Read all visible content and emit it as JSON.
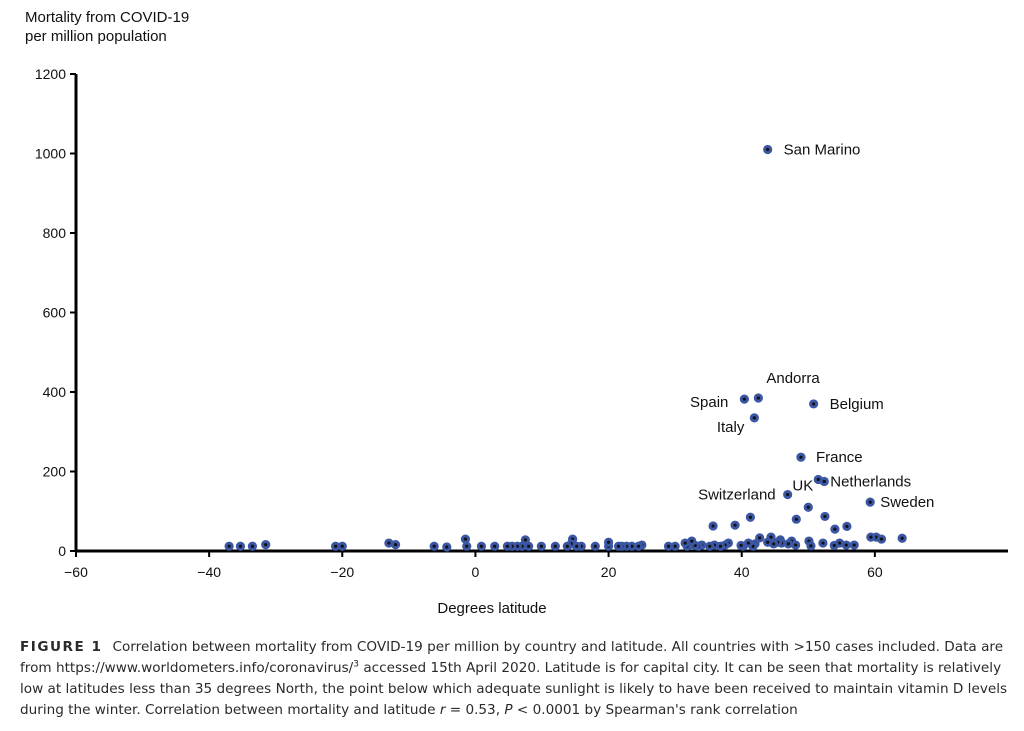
{
  "chart_data": {
    "type": "scatter",
    "title": "",
    "ylabel_line1": "Mortality from COVID-19",
    "ylabel_line2": "per million population",
    "xlabel": "Degrees latitude",
    "xlim": [
      -60,
      80
    ],
    "ylim": [
      0,
      1200
    ],
    "xticks": [
      -60,
      -40,
      -20,
      0,
      20,
      40,
      60
    ],
    "xtick_labels": [
      "−60",
      "−40",
      "−20",
      "0",
      "20",
      "40",
      "60"
    ],
    "yticks": [
      0,
      200,
      400,
      600,
      800,
      1000,
      1200
    ],
    "ytick_labels": [
      "0",
      "200",
      "400",
      "600",
      "800",
      "1000",
      "1200"
    ],
    "marker_color": "#3b56a3",
    "marker_center_color": "#111111",
    "points": [
      [
        43.9,
        1010
      ],
      [
        42.5,
        385
      ],
      [
        40.4,
        382
      ],
      [
        50.8,
        370
      ],
      [
        41.9,
        335
      ],
      [
        48.9,
        236
      ],
      [
        51.5,
        180
      ],
      [
        52.4,
        175
      ],
      [
        46.9,
        142
      ],
      [
        59.3,
        123
      ],
      [
        50.0,
        110
      ],
      [
        41.3,
        85
      ],
      [
        48.2,
        80
      ],
      [
        52.5,
        87
      ],
      [
        35.7,
        63
      ],
      [
        39.0,
        65
      ],
      [
        55.8,
        62
      ],
      [
        54.0,
        55
      ],
      [
        64.1,
        32
      ],
      [
        60.2,
        35
      ],
      [
        59.4,
        35
      ],
      [
        61.0,
        30
      ],
      [
        44.4,
        35
      ],
      [
        42.7,
        33
      ],
      [
        45.8,
        28
      ],
      [
        46.0,
        20
      ],
      [
        47.5,
        25
      ],
      [
        50.1,
        25
      ],
      [
        52.2,
        20
      ],
      [
        54.7,
        20
      ],
      [
        56.9,
        15
      ],
      [
        55.7,
        15
      ],
      [
        53.9,
        14
      ],
      [
        50.4,
        13
      ],
      [
        48.1,
        15
      ],
      [
        47.0,
        18
      ],
      [
        45.4,
        22
      ],
      [
        44.8,
        18
      ],
      [
        43.9,
        22
      ],
      [
        42.0,
        18
      ],
      [
        41.7,
        12
      ],
      [
        41.0,
        20
      ],
      [
        40.2,
        12
      ],
      [
        39.9,
        14
      ],
      [
        38.0,
        20
      ],
      [
        37.5,
        15
      ],
      [
        36.8,
        12
      ],
      [
        35.9,
        15
      ],
      [
        35.2,
        12
      ],
      [
        34.0,
        15
      ],
      [
        33.5,
        12
      ],
      [
        33.0,
        14
      ],
      [
        32.1,
        15
      ],
      [
        31.8,
        12
      ],
      [
        31.5,
        20
      ],
      [
        32.5,
        25
      ],
      [
        30.0,
        12
      ],
      [
        29.0,
        12
      ],
      [
        25.0,
        15
      ],
      [
        24.5,
        12
      ],
      [
        23.5,
        12
      ],
      [
        22.7,
        12
      ],
      [
        22.0,
        12
      ],
      [
        21.5,
        12
      ],
      [
        20.0,
        12
      ],
      [
        20.0,
        22
      ],
      [
        18.0,
        12
      ],
      [
        15.9,
        12
      ],
      [
        15.2,
        12
      ],
      [
        14.6,
        30
      ],
      [
        14.4,
        18
      ],
      [
        13.8,
        12
      ],
      [
        12.0,
        12
      ],
      [
        9.9,
        12
      ],
      [
        8.0,
        12
      ],
      [
        7.5,
        28
      ],
      [
        7.0,
        12
      ],
      [
        6.3,
        12
      ],
      [
        5.5,
        12
      ],
      [
        4.8,
        12
      ],
      [
        2.9,
        12
      ],
      [
        0.9,
        12
      ],
      [
        -1.3,
        12
      ],
      [
        -1.5,
        30
      ],
      [
        -4.3,
        10
      ],
      [
        -6.2,
        12
      ],
      [
        -12.0,
        16
      ],
      [
        -13.0,
        20
      ],
      [
        -20.0,
        12
      ],
      [
        -21.0,
        12
      ],
      [
        -31.5,
        16
      ],
      [
        -33.5,
        12
      ],
      [
        -35.3,
        12
      ],
      [
        -37.0,
        12
      ]
    ],
    "annotations": [
      {
        "text": "San Marino",
        "x": 43.9,
        "y": 1010,
        "anchor": "start",
        "dx": 16,
        "dy": 5
      },
      {
        "text": "Andorra",
        "x": 42.5,
        "y": 385,
        "anchor": "start",
        "dx": 8,
        "dy": -15
      },
      {
        "text": "Spain",
        "x": 40.4,
        "y": 382,
        "anchor": "end",
        "dx": -16,
        "dy": 8
      },
      {
        "text": "Belgium",
        "x": 50.8,
        "y": 370,
        "anchor": "start",
        "dx": 16,
        "dy": 5
      },
      {
        "text": "Italy",
        "x": 41.9,
        "y": 335,
        "anchor": "end",
        "dx": -10,
        "dy": 14
      },
      {
        "text": "France",
        "x": 48.9,
        "y": 236,
        "anchor": "start",
        "dx": 15,
        "dy": 5
      },
      {
        "text": "Netherlands",
        "x": 52.4,
        "y": 175,
        "anchor": "start",
        "dx": 6,
        "dy": 5
      },
      {
        "text": "UK",
        "x": 51.5,
        "y": 180,
        "anchor": "end",
        "dx": -5,
        "dy": 11
      },
      {
        "text": "Switzerland",
        "x": 46.9,
        "y": 142,
        "anchor": "end",
        "dx": -12,
        "dy": 5
      },
      {
        "text": "Sweden",
        "x": 59.3,
        "y": 123,
        "anchor": "start",
        "dx": 10,
        "dy": 5
      }
    ]
  },
  "caption": {
    "label": "FIGURE 1",
    "part1": "Correlation between mortality from COVID-19 per million by country and latitude. All countries with >150 cases included. Data are from https://www.worldometers.info/coronavirus/",
    "ref": "3",
    "part2": " accessed 15th April 2020. Latitude is for capital city. It can be seen that mortality is relatively low at latitudes less than 35 degrees North, the point below which adequate sunlight is likely to have been received to maintain vitamin D levels during the winter. Correlation between mortality and latitude ",
    "r_symbol": "r",
    "r_value": " = 0.53, ",
    "p_symbol": "P",
    "p_value": " < 0.0001 by Spearman's rank correlation"
  }
}
